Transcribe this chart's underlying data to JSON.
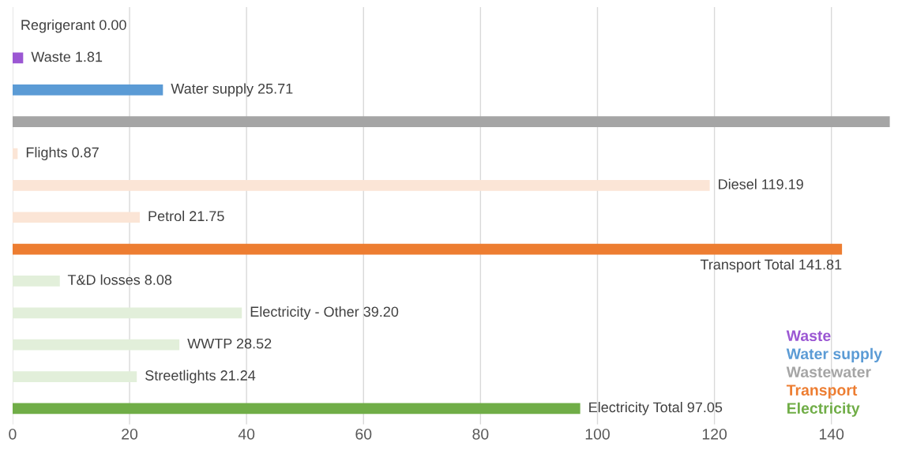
{
  "chart_data": {
    "type": "bar",
    "orientation": "horizontal",
    "categories": [
      null,
      null,
      null,
      null,
      null,
      null,
      null,
      null,
      null,
      null,
      null,
      null,
      null
    ],
    "series": [
      {
        "color": "#7f7f7f",
        "values": [
          0.0,
          null,
          null,
          null,
          null,
          null,
          null,
          null,
          null,
          null,
          null,
          null,
          null
        ]
      },
      {
        "name": "Waste",
        "color": "#9b57d3",
        "values": [
          null,
          1.81,
          null,
          null,
          null,
          null,
          null,
          null,
          null,
          null,
          null,
          null,
          null
        ]
      },
      {
        "name": "Water supply",
        "color": "#5b9bd5",
        "values": [
          null,
          null,
          25.71,
          null,
          null,
          null,
          null,
          null,
          null,
          null,
          null,
          null,
          null
        ]
      },
      {
        "name": "Wastewater",
        "color": "#a5a5a5",
        "values": [
          null,
          null,
          null,
          150,
          null,
          null,
          null,
          null,
          null,
          null,
          null,
          null,
          null
        ]
      },
      {
        "name": "Transport",
        "color": "#ed7d31",
        "values": [
          null,
          null,
          null,
          null,
          0.87,
          119.19,
          21.75,
          141.81,
          null,
          null,
          null,
          null,
          null
        ],
        "colors": [
          null,
          null,
          null,
          null,
          "#fbe5d6",
          "#fbe5d6",
          "#fbe5d6",
          "#ed7d31",
          null,
          null,
          null,
          null,
          null
        ]
      },
      {
        "name": "Electricity",
        "color": "#70ad47",
        "values": [
          null,
          null,
          null,
          null,
          null,
          null,
          null,
          null,
          8.08,
          39.2,
          28.52,
          21.24,
          97.05
        ],
        "colors": [
          null,
          null,
          null,
          null,
          null,
          null,
          null,
          null,
          "#e2efda",
          "#e2efda",
          "#e2efda",
          "#e2efda",
          "#70ad47"
        ]
      }
    ],
    "value_labels": [
      "Regrigerant 0.00",
      "Waste 1.81",
      "Water supply 25.71",
      null,
      "Flights 0.87",
      "Diesel 119.19",
      "Petrol 21.75",
      "Transport Total 141.81",
      "T&D losses 8.08",
      "Electricity - Other 39.20",
      "WWTP 28.52",
      "Streetlights 21.24",
      "Electricity Total 97.05"
    ],
    "xlim": [
      0,
      150
    ],
    "xticks": [
      0,
      20,
      40,
      60,
      80,
      100,
      120,
      140
    ],
    "grid": "x",
    "legend": "bottom right"
  }
}
